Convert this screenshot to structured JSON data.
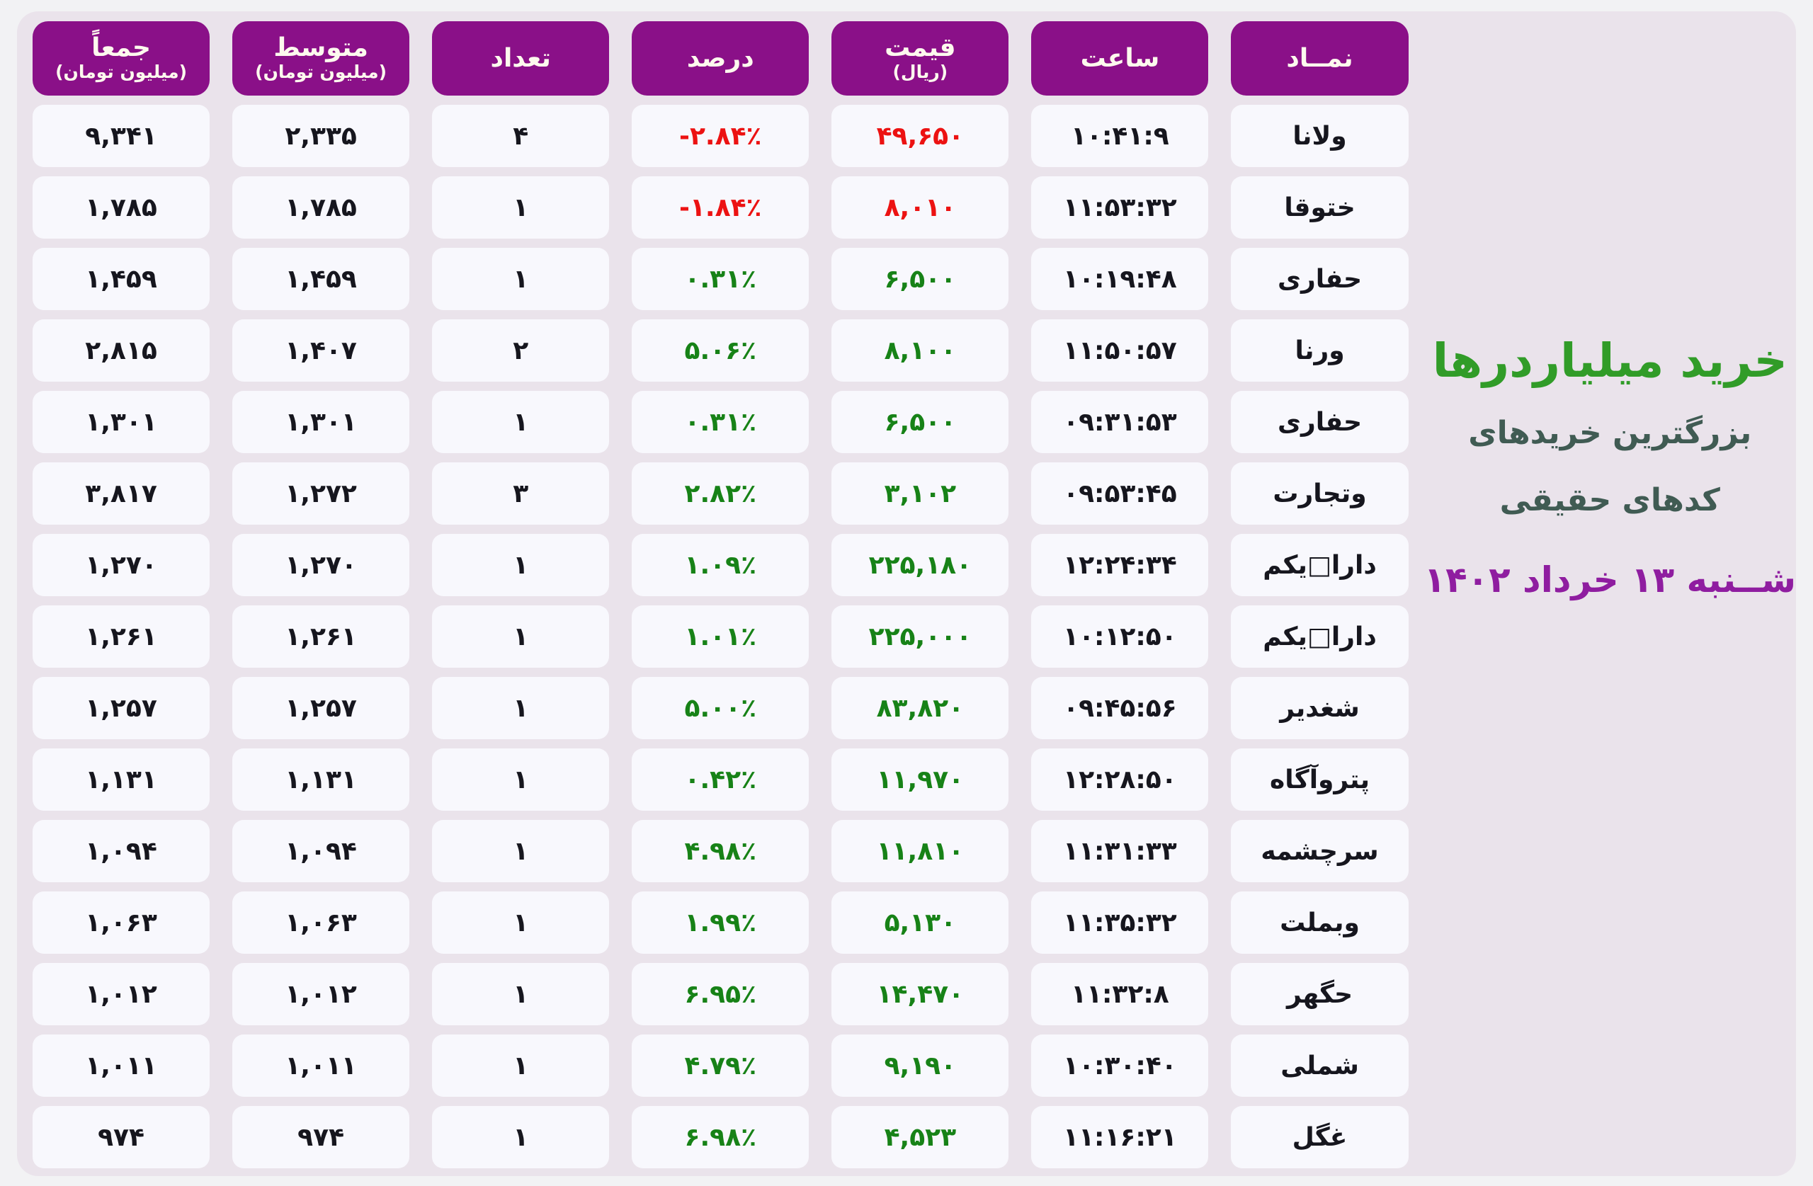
{
  "side": {
    "title": "خرید میلیاردرها",
    "subtitle_line1": "بزرگترین خریدهای",
    "subtitle_line2": "کدهای حقیقی",
    "date": "شــنبه ۱۳ خرداد ۱۴۰۲"
  },
  "colors": {
    "page_bg": "#f2f2f4",
    "panel_bg": "#eae3eb",
    "cell_bg": "#f8f8fd",
    "header_bg": "#8a1088",
    "positive_green": "#178217",
    "negative_red": "#ec1212",
    "title_green": "#319c28",
    "subtitle_dark": "#405b53",
    "date_purple": "#8f1da0"
  },
  "table": {
    "headers": [
      {
        "id": "symbol",
        "label": "نمــاد",
        "sub": ""
      },
      {
        "id": "time",
        "label": "ساعت",
        "sub": ""
      },
      {
        "id": "price",
        "label": "قیمت",
        "sub": "(ریال)"
      },
      {
        "id": "percent",
        "label": "درصد",
        "sub": ""
      },
      {
        "id": "count",
        "label": "تعداد",
        "sub": ""
      },
      {
        "id": "average",
        "label": "متوسط",
        "sub": "(میلیون تومان)"
      },
      {
        "id": "total",
        "label": "جمعاً",
        "sub": "(میلیون تومان)"
      }
    ],
    "rows": [
      {
        "symbol": "ولانا",
        "time": "۱۰:۴۱:۹",
        "price": "۴۹,۶۵۰",
        "percent": "-۲.۸۴٪",
        "trend": "down",
        "count": "۴",
        "average": "۲,۳۳۵",
        "total": "۹,۳۴۱"
      },
      {
        "symbol": "ختوقا",
        "time": "۱۱:۵۳:۳۲",
        "price": "۸,۰۱۰",
        "percent": "-۱.۸۴٪",
        "trend": "down",
        "count": "۱",
        "average": "۱,۷۸۵",
        "total": "۱,۷۸۵"
      },
      {
        "symbol": "حفاری",
        "time": "۱۰:۱۹:۴۸",
        "price": "۶,۵۰۰",
        "percent": "۰.۳۱٪",
        "trend": "up",
        "count": "۱",
        "average": "۱,۴۵۹",
        "total": "۱,۴۵۹"
      },
      {
        "symbol": "ورنا",
        "time": "۱۱:۵۰:۵۷",
        "price": "۸,۱۰۰",
        "percent": "۵.۰۶٪",
        "trend": "up",
        "count": "۲",
        "average": "۱,۴۰۷",
        "total": "۲,۸۱۵"
      },
      {
        "symbol": "حفاری",
        "time": "۰۹:۳۱:۵۳",
        "price": "۶,۵۰۰",
        "percent": "۰.۳۱٪",
        "trend": "up",
        "count": "۱",
        "average": "۱,۳۰۱",
        "total": "۱,۳۰۱"
      },
      {
        "symbol": "وتجارت",
        "time": "۰۹:۵۳:۴۵",
        "price": "۳,۱۰۲",
        "percent": "۲.۸۲٪",
        "trend": "up",
        "count": "۳",
        "average": "۱,۲۷۲",
        "total": "۳,۸۱۷"
      },
      {
        "symbol": "دارا□یکم",
        "time": "۱۲:۲۴:۳۴",
        "price": "۲۲۵,۱۸۰",
        "percent": "۱.۰۹٪",
        "trend": "up",
        "count": "۱",
        "average": "۱,۲۷۰",
        "total": "۱,۲۷۰"
      },
      {
        "symbol": "دارا□یکم",
        "time": "۱۰:۱۲:۵۰",
        "price": "۲۲۵,۰۰۰",
        "percent": "۱.۰۱٪",
        "trend": "up",
        "count": "۱",
        "average": "۱,۲۶۱",
        "total": "۱,۲۶۱"
      },
      {
        "symbol": "شغدیر",
        "time": "۰۹:۴۵:۵۶",
        "price": "۸۳,۸۲۰",
        "percent": "۵.۰۰٪",
        "trend": "up",
        "count": "۱",
        "average": "۱,۲۵۷",
        "total": "۱,۲۵۷"
      },
      {
        "symbol": "پتروآگاه",
        "time": "۱۲:۲۸:۵۰",
        "price": "۱۱,۹۷۰",
        "percent": "۰.۴۲٪",
        "trend": "up",
        "count": "۱",
        "average": "۱,۱۳۱",
        "total": "۱,۱۳۱"
      },
      {
        "symbol": "سرچشمه",
        "time": "۱۱:۳۱:۳۳",
        "price": "۱۱,۸۱۰",
        "percent": "۴.۹۸٪",
        "trend": "up",
        "count": "۱",
        "average": "۱,۰۹۴",
        "total": "۱,۰۹۴"
      },
      {
        "symbol": "وبملت",
        "time": "۱۱:۳۵:۳۲",
        "price": "۵,۱۳۰",
        "percent": "۱.۹۹٪",
        "trend": "up",
        "count": "۱",
        "average": "۱,۰۶۳",
        "total": "۱,۰۶۳"
      },
      {
        "symbol": "حگهر",
        "time": "۱۱:۳۲:۸",
        "price": "۱۴,۴۷۰",
        "percent": "۶.۹۵٪",
        "trend": "up",
        "count": "۱",
        "average": "۱,۰۱۲",
        "total": "۱,۰۱۲"
      },
      {
        "symbol": "شملی",
        "time": "۱۰:۳۰:۴۰",
        "price": "۹,۱۹۰",
        "percent": "۴.۷۹٪",
        "trend": "up",
        "count": "۱",
        "average": "۱,۰۱۱",
        "total": "۱,۰۱۱"
      },
      {
        "symbol": "غگل",
        "time": "۱۱:۱۶:۲۱",
        "price": "۴,۵۲۳",
        "percent": "۶.۹۸٪",
        "trend": "up",
        "count": "۱",
        "average": "۹۷۴",
        "total": "۹۷۴"
      }
    ]
  },
  "chart_data": {
    "type": "table",
    "title": "خرید میلیاردرها",
    "subtitle": "بزرگترین خریدهای کدهای حقیقی",
    "date": "شنبه ۱۳ خرداد ۱۴۰۲",
    "columns": [
      "symbol",
      "time",
      "price_rial",
      "percent",
      "count",
      "average_million_toman",
      "total_million_toman"
    ],
    "rows": [
      {
        "symbol": "ولانا",
        "time": "10:41:9",
        "price_rial": 49650,
        "percent": -2.84,
        "count": 4,
        "average_million_toman": 2335,
        "total_million_toman": 9341
      },
      {
        "symbol": "ختوقا",
        "time": "11:53:32",
        "price_rial": 8010,
        "percent": -1.84,
        "count": 1,
        "average_million_toman": 1785,
        "total_million_toman": 1785
      },
      {
        "symbol": "حفاری",
        "time": "10:19:48",
        "price_rial": 6500,
        "percent": 0.31,
        "count": 1,
        "average_million_toman": 1459,
        "total_million_toman": 1459
      },
      {
        "symbol": "ورنا",
        "time": "11:50:57",
        "price_rial": 8100,
        "percent": 5.06,
        "count": 2,
        "average_million_toman": 1407,
        "total_million_toman": 2815
      },
      {
        "symbol": "حفاری",
        "time": "09:31:53",
        "price_rial": 6500,
        "percent": 0.31,
        "count": 1,
        "average_million_toman": 1301,
        "total_million_toman": 1301
      },
      {
        "symbol": "وتجارت",
        "time": "09:53:45",
        "price_rial": 3102,
        "percent": 2.82,
        "count": 3,
        "average_million_toman": 1272,
        "total_million_toman": 3817
      },
      {
        "symbol": "دارا یکم",
        "time": "12:24:34",
        "price_rial": 225180,
        "percent": 1.09,
        "count": 1,
        "average_million_toman": 1270,
        "total_million_toman": 1270
      },
      {
        "symbol": "دارا یکم",
        "time": "10:12:50",
        "price_rial": 225000,
        "percent": 1.01,
        "count": 1,
        "average_million_toman": 1261,
        "total_million_toman": 1261
      },
      {
        "symbol": "شغدیر",
        "time": "09:45:56",
        "price_rial": 83820,
        "percent": 5.0,
        "count": 1,
        "average_million_toman": 1257,
        "total_million_toman": 1257
      },
      {
        "symbol": "پتروآگاه",
        "time": "12:28:50",
        "price_rial": 11970,
        "percent": 0.42,
        "count": 1,
        "average_million_toman": 1131,
        "total_million_toman": 1131
      },
      {
        "symbol": "سرچشمه",
        "time": "11:31:33",
        "price_rial": 11810,
        "percent": 4.98,
        "count": 1,
        "average_million_toman": 1094,
        "total_million_toman": 1094
      },
      {
        "symbol": "وبملت",
        "time": "11:35:32",
        "price_rial": 5130,
        "percent": 1.99,
        "count": 1,
        "average_million_toman": 1063,
        "total_million_toman": 1063
      },
      {
        "symbol": "حگهر",
        "time": "11:32:8",
        "price_rial": 14470,
        "percent": 6.95,
        "count": 1,
        "average_million_toman": 1012,
        "total_million_toman": 1012
      },
      {
        "symbol": "شملی",
        "time": "10:30:40",
        "price_rial": 9190,
        "percent": 4.79,
        "count": 1,
        "average_million_toman": 1011,
        "total_million_toman": 1011
      },
      {
        "symbol": "غگل",
        "time": "11:16:21",
        "price_rial": 4523,
        "percent": 6.98,
        "count": 1,
        "average_million_toman": 974,
        "total_million_toman": 974
      }
    ]
  }
}
